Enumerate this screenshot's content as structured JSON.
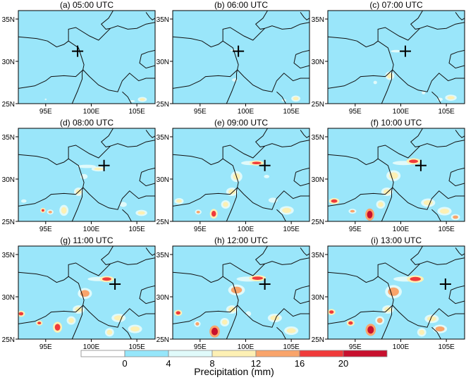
{
  "chart_data": {
    "type": "heatmap",
    "xlim": [
      92,
      107
    ],
    "ylim": [
      25,
      36
    ],
    "x_ticks": [
      "95E",
      "100E",
      "105E"
    ],
    "x_tick_values": [
      95,
      100,
      105
    ],
    "y_ticks": [
      "25N",
      "30N",
      "35N"
    ],
    "y_tick_values": [
      25,
      30,
      35
    ],
    "colorbar": {
      "title": "Precipitation (mm)",
      "levels": [
        "0",
        "4",
        "8",
        "12",
        "16",
        "20"
      ],
      "colors": [
        "#ffffff",
        "#96e6fa",
        "#e0fafa",
        "#fdf0b4",
        "#f9a46b",
        "#f03a3a",
        "#c8102e"
      ]
    },
    "background_level_color": "#9ae6fa",
    "marker": "plus",
    "panels": [
      {
        "title": "(a) 05:00 UTC",
        "marker": [
          98.5,
          31.2
        ],
        "cells": [
          [
            105.6,
            25.5,
            0.3,
            0.15,
            3
          ],
          [
            104.5,
            25.3,
            0.3,
            0.12,
            2
          ],
          [
            95,
            25.5,
            0.1,
            0.1,
            2
          ]
        ]
      },
      {
        "title": "(b) 06:00 UTC",
        "marker": [
          99.2,
          31.2
        ],
        "cells": [
          [
            98.8,
            27.8,
            0.3,
            0.2,
            2
          ],
          [
            105.5,
            25.6,
            0.3,
            0.2,
            3
          ],
          [
            104.2,
            25.4,
            0.25,
            0.15,
            2
          ],
          [
            98.7,
            31.3,
            0.4,
            0.1,
            2
          ]
        ]
      },
      {
        "title": "(c) 07:00 UTC",
        "marker": [
          100.5,
          31.2
        ],
        "cells": [
          [
            99.5,
            31.2,
            0.6,
            0.15,
            2
          ],
          [
            98.8,
            28.3,
            0.3,
            0.3,
            3
          ],
          [
            97.2,
            27.5,
            0.2,
            0.2,
            2
          ],
          [
            105.5,
            25.7,
            0.4,
            0.2,
            3
          ],
          [
            104.3,
            25.5,
            0.3,
            0.2,
            2
          ],
          [
            102.5,
            26.3,
            0.2,
            0.2,
            2
          ]
        ]
      },
      {
        "title": "(d) 08:00 UTC",
        "marker": [
          101.4,
          31.6
        ],
        "cells": [
          [
            99.5,
            31.5,
            1.0,
            0.2,
            2
          ],
          [
            100.8,
            31.2,
            0.5,
            0.15,
            3
          ],
          [
            99.2,
            30.3,
            0.4,
            0.3,
            2
          ],
          [
            98.6,
            28.5,
            0.3,
            0.3,
            3
          ],
          [
            94.7,
            26.3,
            0.15,
            0.15,
            5
          ],
          [
            95.5,
            26.1,
            0.2,
            0.15,
            4
          ],
          [
            97,
            26.3,
            0.3,
            0.4,
            3
          ],
          [
            103.5,
            27,
            0.4,
            0.3,
            2
          ],
          [
            105.5,
            26,
            0.4,
            0.2,
            3
          ],
          [
            92.6,
            27.4,
            0.3,
            0.2,
            2
          ]
        ]
      },
      {
        "title": "(e) 09:00 UTC",
        "marker": [
          102.1,
          31.6
        ],
        "cells": [
          [
            100.5,
            31.9,
            1.0,
            0.25,
            2
          ],
          [
            101.2,
            31.9,
            0.5,
            0.15,
            5
          ],
          [
            99,
            30.3,
            0.4,
            0.4,
            3
          ],
          [
            98.5,
            28.5,
            0.4,
            0.3,
            3
          ],
          [
            92.7,
            27.4,
            0.3,
            0.2,
            3
          ],
          [
            94.8,
            26.1,
            0.2,
            0.15,
            4
          ],
          [
            96.5,
            25.9,
            0.25,
            0.35,
            5
          ],
          [
            97.8,
            27,
            0.3,
            0.3,
            3
          ],
          [
            103,
            27.5,
            0.5,
            0.3,
            2
          ],
          [
            104.5,
            26.3,
            0.5,
            0.3,
            3
          ],
          [
            102.3,
            30.3,
            0.3,
            0.2,
            2
          ]
        ]
      },
      {
        "title": "(f) 10:00 UTC",
        "marker": [
          102.2,
          31.6
        ],
        "cells": [
          [
            100.3,
            31.9,
            1.2,
            0.25,
            2
          ],
          [
            101.4,
            32.1,
            0.5,
            0.2,
            5
          ],
          [
            99.2,
            30.4,
            0.5,
            0.4,
            3
          ],
          [
            98.5,
            28.5,
            0.4,
            0.3,
            3
          ],
          [
            92.7,
            27.4,
            0.35,
            0.2,
            5
          ],
          [
            94.7,
            26.2,
            0.25,
            0.15,
            4
          ],
          [
            96.6,
            25.8,
            0.3,
            0.45,
            6
          ],
          [
            97.8,
            27,
            0.3,
            0.3,
            3
          ],
          [
            103,
            27.2,
            0.5,
            0.3,
            3
          ],
          [
            104.8,
            26.2,
            0.5,
            0.3,
            3
          ],
          [
            106,
            25.5,
            0.3,
            0.2,
            4
          ]
        ]
      },
      {
        "title": "(g) 11:00 UTC",
        "marker": [
          102.6,
          31.5
        ],
        "cells": [
          [
            100.8,
            32.1,
            1.2,
            0.25,
            2
          ],
          [
            101.7,
            32.1,
            0.5,
            0.2,
            5
          ],
          [
            99.3,
            30.4,
            0.5,
            0.4,
            4
          ],
          [
            98.6,
            28.5,
            0.4,
            0.3,
            3
          ],
          [
            92.3,
            28,
            0.25,
            0.2,
            5
          ],
          [
            94.3,
            26.9,
            0.2,
            0.15,
            5
          ],
          [
            96.3,
            26.4,
            0.3,
            0.4,
            5
          ],
          [
            97.8,
            27.2,
            0.3,
            0.3,
            3
          ],
          [
            103,
            27.5,
            0.5,
            0.3,
            3
          ],
          [
            104.8,
            26.2,
            0.5,
            0.3,
            3
          ],
          [
            102,
            25.8,
            0.3,
            0.3,
            3
          ]
        ]
      },
      {
        "title": "(h) 12:00 UTC",
        "marker": [
          102.1,
          31.5
        ],
        "cells": [
          [
            100.3,
            32.1,
            1.3,
            0.3,
            2
          ],
          [
            101.3,
            32.2,
            0.6,
            0.2,
            5
          ],
          [
            99,
            30.8,
            0.6,
            0.4,
            4
          ],
          [
            98.5,
            28.5,
            0.4,
            0.3,
            3
          ],
          [
            92.6,
            28.1,
            0.25,
            0.2,
            5
          ],
          [
            94.7,
            26.8,
            0.2,
            0.2,
            4
          ],
          [
            96.6,
            25.9,
            0.35,
            0.45,
            6
          ],
          [
            97.7,
            27,
            0.3,
            0.3,
            3
          ],
          [
            103.2,
            27.5,
            0.5,
            0.3,
            3
          ],
          [
            105,
            26,
            0.5,
            0.3,
            3
          ],
          [
            100.3,
            28,
            0.3,
            0.3,
            2
          ]
        ]
      },
      {
        "title": "(i) 13:00 UTC",
        "marker": [
          104.9,
          31.5
        ],
        "cells": [
          [
            100.5,
            32.1,
            1.3,
            0.3,
            2
          ],
          [
            101.6,
            32.1,
            0.6,
            0.25,
            5
          ],
          [
            99.2,
            30.6,
            0.6,
            0.5,
            4
          ],
          [
            98.6,
            28.5,
            0.4,
            0.3,
            3
          ],
          [
            92.4,
            28.2,
            0.25,
            0.2,
            5
          ],
          [
            94.5,
            26.9,
            0.25,
            0.2,
            5
          ],
          [
            96.7,
            26.1,
            0.35,
            0.45,
            6
          ],
          [
            97.7,
            27.2,
            0.3,
            0.3,
            4
          ],
          [
            103.4,
            27.4,
            0.5,
            0.3,
            3
          ],
          [
            104.3,
            26.2,
            0.5,
            0.3,
            4
          ],
          [
            102.3,
            25.8,
            0.3,
            0.3,
            3
          ]
        ]
      }
    ]
  }
}
